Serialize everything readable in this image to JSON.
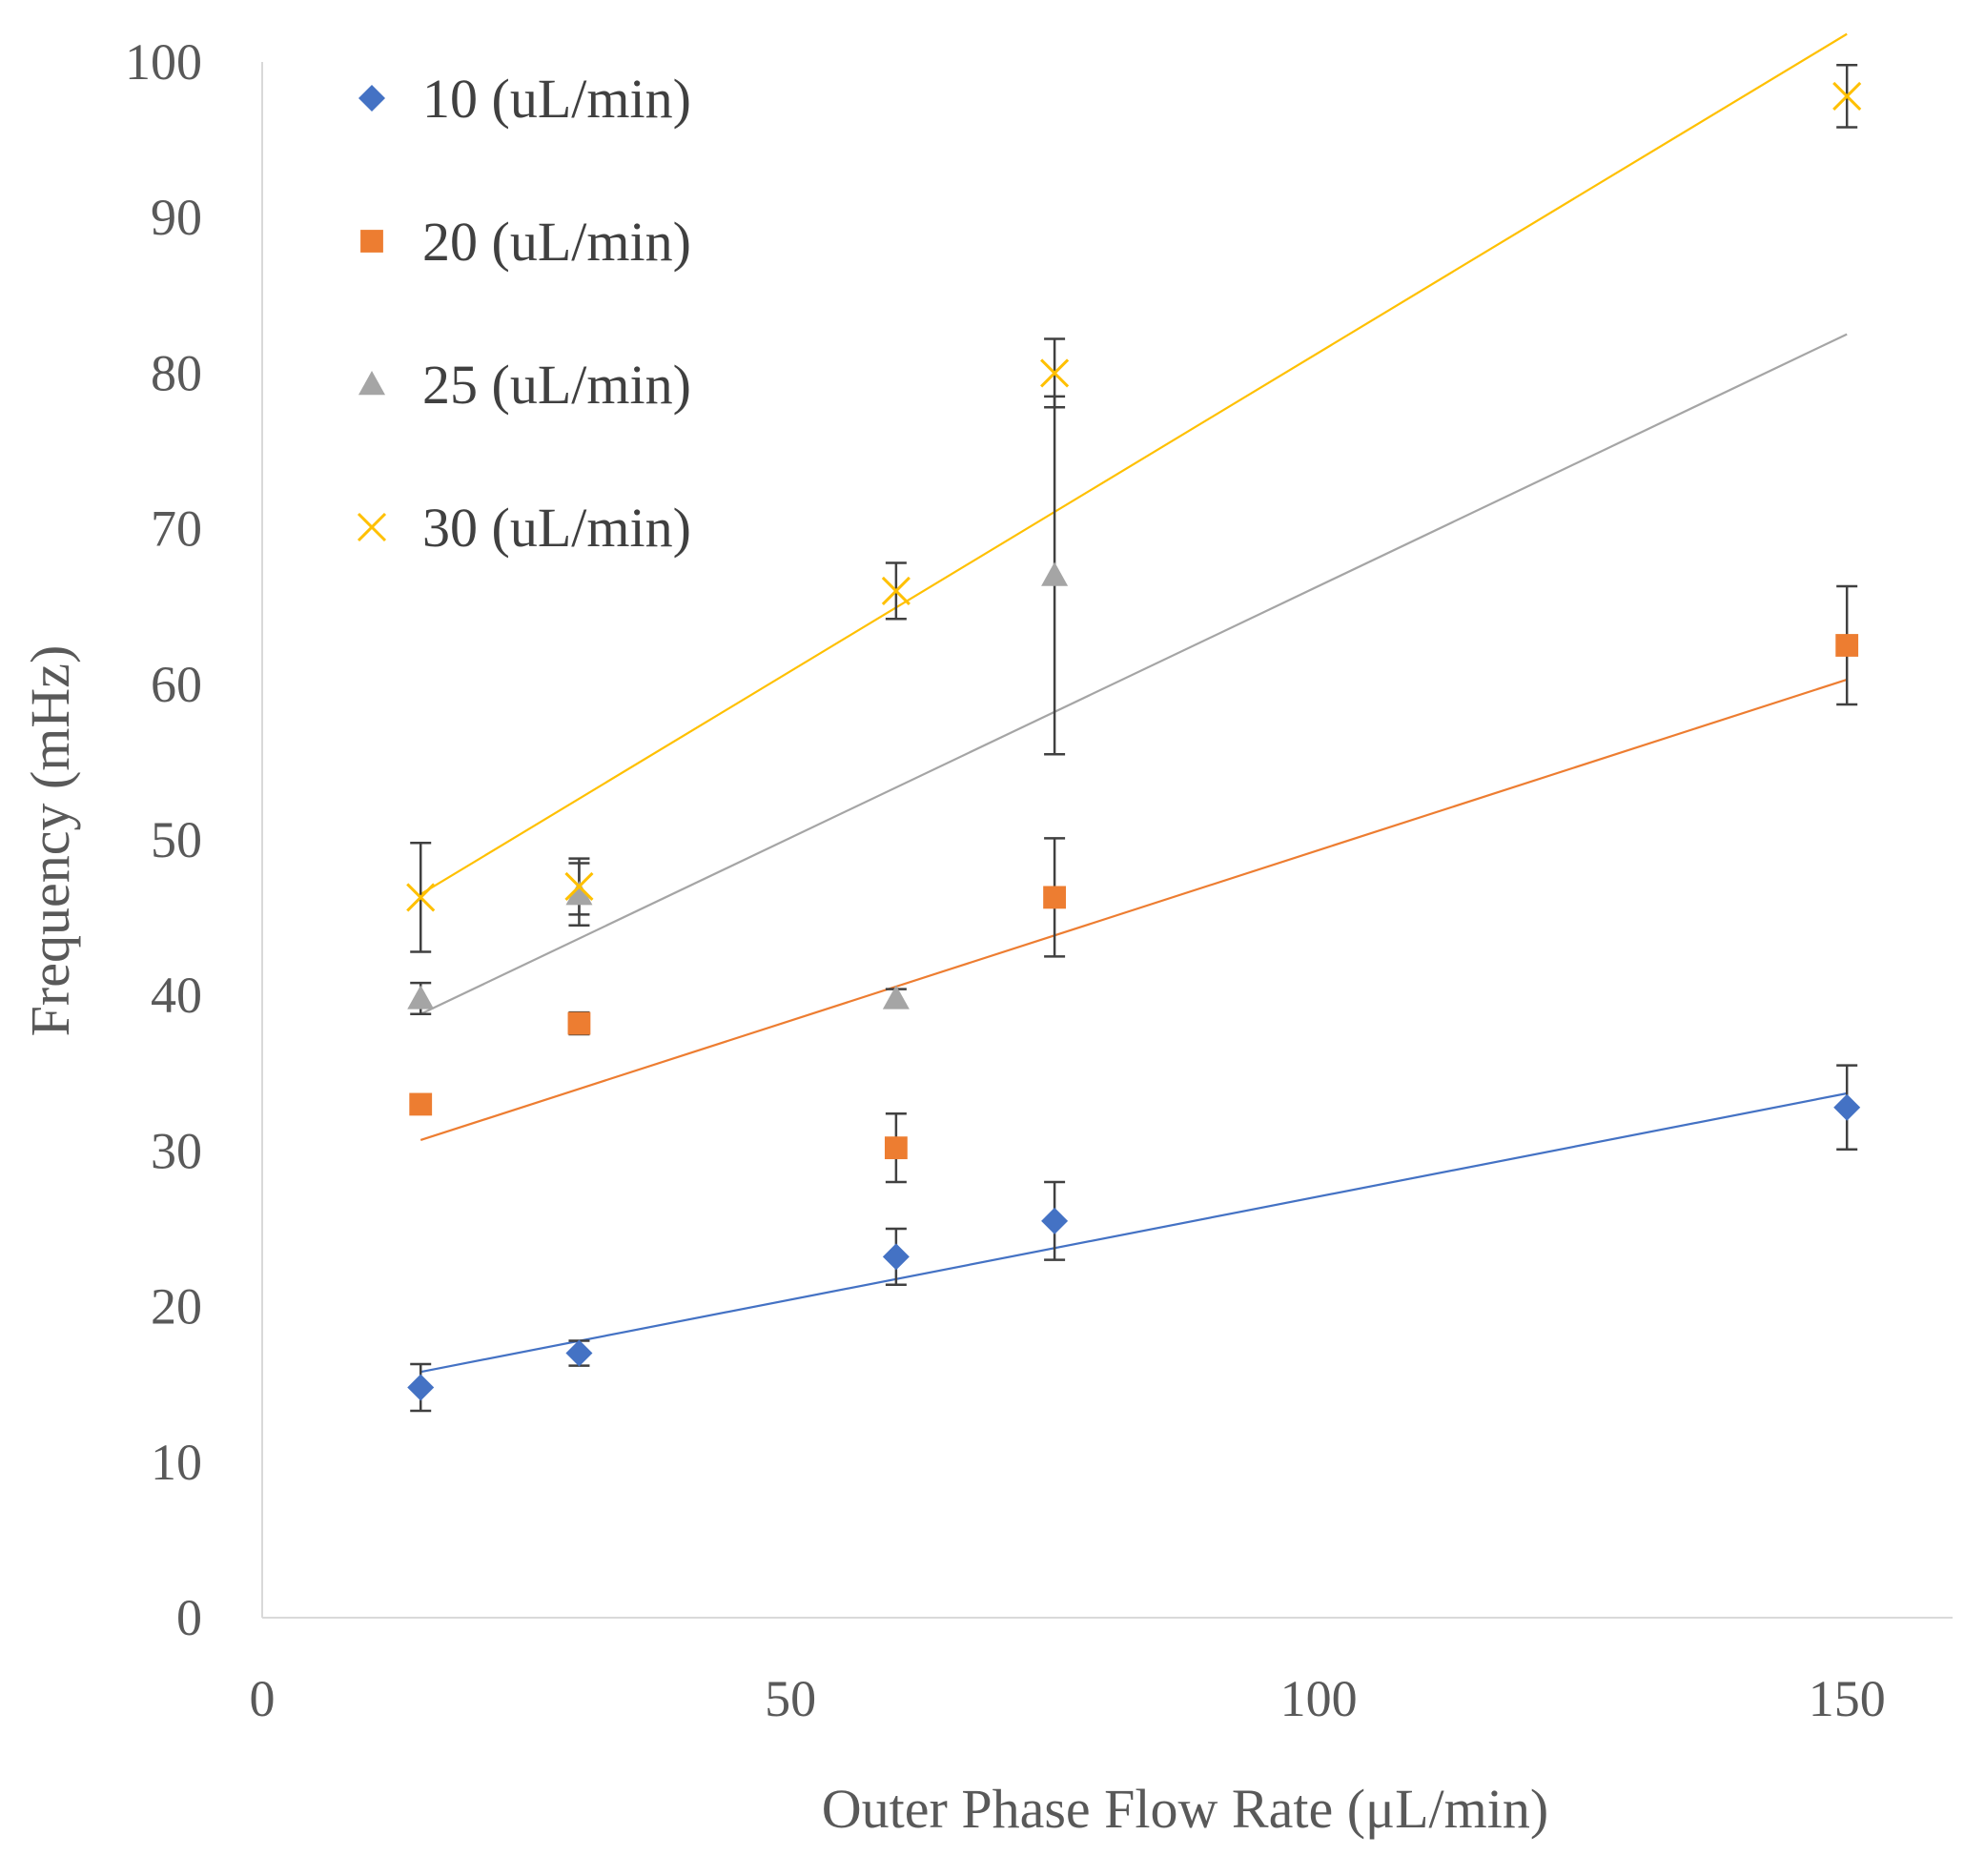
{
  "chart_data": {
    "type": "scatter",
    "title": "",
    "xlabel": "Outer Phase Flow Rate (μL/min)",
    "ylabel": "Frequency (mHz)",
    "xlim": [
      0,
      160
    ],
    "ylim": [
      0,
      100
    ],
    "xticks": [
      0,
      50,
      100,
      150
    ],
    "yticks": [
      0,
      10,
      20,
      30,
      40,
      50,
      60,
      70,
      80,
      90,
      100
    ],
    "grid": false,
    "legend_position": "top-left",
    "trendlines": "linear",
    "series": [
      {
        "name": "10 (uL/min)",
        "marker": "diamond",
        "color": "#4472C4",
        "x": [
          15,
          30,
          60,
          75,
          150
        ],
        "y": [
          14.8,
          17.0,
          23.2,
          25.5,
          32.8
        ],
        "error": [
          1.5,
          0.8,
          1.8,
          2.5,
          2.7
        ],
        "trend": [
          [
            15,
            15.8
          ],
          [
            150,
            33.7
          ]
        ]
      },
      {
        "name": "20 (uL/min)",
        "marker": "square",
        "color": "#ED7D31",
        "x": [
          15,
          30,
          60,
          75,
          150
        ],
        "y": [
          33.0,
          38.2,
          30.2,
          46.3,
          62.5
        ],
        "error": [
          0.0,
          0.7,
          2.2,
          3.8,
          3.8
        ],
        "trend": [
          [
            15,
            30.7
          ],
          [
            150,
            60.3
          ]
        ]
      },
      {
        "name": "25 (uL/min)",
        "marker": "triangle",
        "color": "#A5A5A5",
        "x": [
          15,
          30,
          60,
          75
        ],
        "y": [
          39.8,
          46.5,
          39.8,
          67.0
        ],
        "error": [
          1.0,
          2.0,
          0.6,
          11.5
        ],
        "trend": [
          [
            15,
            38.8
          ],
          [
            150,
            82.5
          ]
        ]
      },
      {
        "name": "30 (uL/min)",
        "marker": "x",
        "color": "#FFC000",
        "x": [
          15,
          30,
          60,
          75,
          150
        ],
        "y": [
          46.3,
          47.0,
          66.0,
          80.0,
          97.8
        ],
        "error": [
          3.5,
          1.8,
          1.8,
          2.2,
          2.0
        ],
        "trend": [
          [
            15,
            46.5
          ],
          [
            150,
            101.8
          ]
        ]
      }
    ]
  }
}
